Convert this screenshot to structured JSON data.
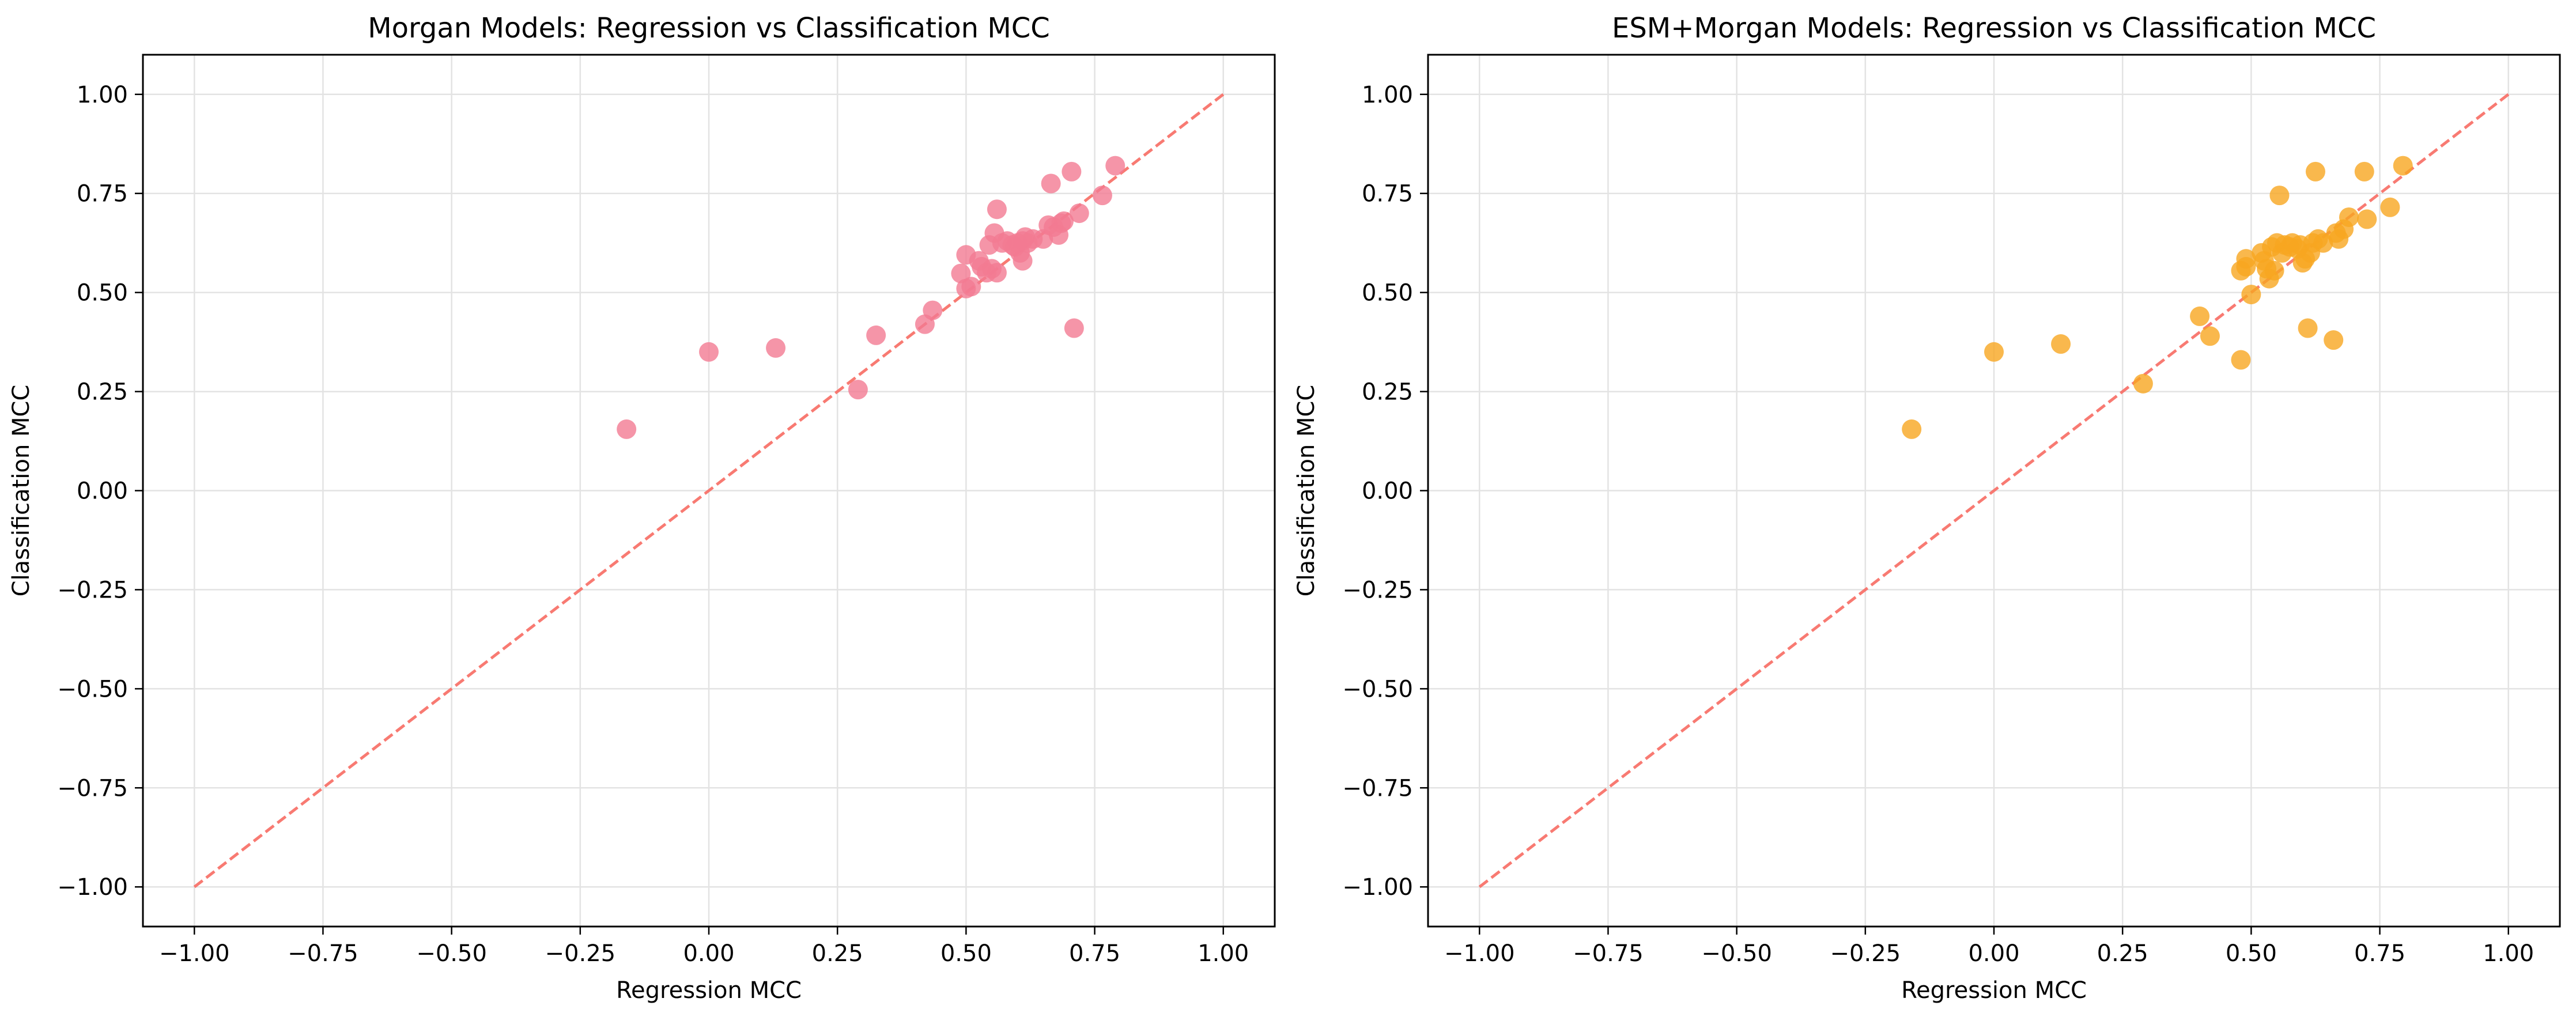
{
  "chart_data": [
    {
      "type": "scatter",
      "title": "Morgan Models: Regression vs Classification MCC",
      "xlabel": "Regression MCC",
      "ylabel": "Classification MCC",
      "xlim": [
        -1.1,
        1.1
      ],
      "ylim": [
        -1.1,
        1.1
      ],
      "xticks": [
        "−1.00",
        "−0.75",
        "−0.50",
        "−0.25",
        "0.00",
        "0.25",
        "0.50",
        "0.75",
        "1.00"
      ],
      "yticks": [
        "−1.00",
        "−0.75",
        "−0.50",
        "−0.25",
        "0.00",
        "0.25",
        "0.50",
        "0.75",
        "1.00"
      ],
      "grid": true,
      "color": "#f27a92",
      "reference_line": {
        "from": [
          -1,
          -1
        ],
        "to": [
          1,
          1
        ],
        "style": "dashed",
        "color": "#f8736b"
      },
      "points": [
        [
          -0.16,
          0.155
        ],
        [
          0.0,
          0.35
        ],
        [
          0.13,
          0.36
        ],
        [
          0.29,
          0.255
        ],
        [
          0.325,
          0.392
        ],
        [
          0.42,
          0.42
        ],
        [
          0.435,
          0.455
        ],
        [
          0.49,
          0.548
        ],
        [
          0.5,
          0.595
        ],
        [
          0.5,
          0.51
        ],
        [
          0.51,
          0.515
        ],
        [
          0.525,
          0.58
        ],
        [
          0.53,
          0.565
        ],
        [
          0.54,
          0.55
        ],
        [
          0.545,
          0.62
        ],
        [
          0.55,
          0.56
        ],
        [
          0.555,
          0.65
        ],
        [
          0.56,
          0.55
        ],
        [
          0.56,
          0.71
        ],
        [
          0.57,
          0.625
        ],
        [
          0.58,
          0.63
        ],
        [
          0.59,
          0.62
        ],
        [
          0.595,
          0.615
        ],
        [
          0.6,
          0.625
        ],
        [
          0.605,
          0.6
        ],
        [
          0.61,
          0.58
        ],
        [
          0.61,
          0.63
        ],
        [
          0.615,
          0.64
        ],
        [
          0.62,
          0.625
        ],
        [
          0.63,
          0.635
        ],
        [
          0.65,
          0.635
        ],
        [
          0.66,
          0.67
        ],
        [
          0.665,
          0.775
        ],
        [
          0.67,
          0.665
        ],
        [
          0.68,
          0.645
        ],
        [
          0.685,
          0.675
        ],
        [
          0.69,
          0.68
        ],
        [
          0.705,
          0.805
        ],
        [
          0.71,
          0.41
        ],
        [
          0.72,
          0.7
        ],
        [
          0.765,
          0.745
        ],
        [
          0.79,
          0.82
        ]
      ]
    },
    {
      "type": "scatter",
      "title": "ESM+Morgan Models: Regression vs Classification MCC",
      "xlabel": "Regression MCC",
      "ylabel": "Classification MCC",
      "xlim": [
        -1.1,
        1.1
      ],
      "ylim": [
        -1.1,
        1.1
      ],
      "xticks": [
        "−1.00",
        "−0.75",
        "−0.50",
        "−0.25",
        "0.00",
        "0.25",
        "0.50",
        "0.75",
        "1.00"
      ],
      "yticks": [
        "−1.00",
        "−0.75",
        "−0.50",
        "−0.25",
        "0.00",
        "0.25",
        "0.50",
        "0.75",
        "1.00"
      ],
      "grid": true,
      "color": "#f7a621",
      "reference_line": {
        "from": [
          -1,
          -1
        ],
        "to": [
          1,
          1
        ],
        "style": "dashed",
        "color": "#f8736b"
      },
      "points": [
        [
          -0.16,
          0.155
        ],
        [
          0.0,
          0.35
        ],
        [
          0.13,
          0.37
        ],
        [
          0.29,
          0.27
        ],
        [
          0.4,
          0.44
        ],
        [
          0.42,
          0.39
        ],
        [
          0.48,
          0.33
        ],
        [
          0.48,
          0.555
        ],
        [
          0.49,
          0.565
        ],
        [
          0.49,
          0.585
        ],
        [
          0.5,
          0.495
        ],
        [
          0.52,
          0.6
        ],
        [
          0.525,
          0.58
        ],
        [
          0.53,
          0.56
        ],
        [
          0.535,
          0.535
        ],
        [
          0.54,
          0.615
        ],
        [
          0.545,
          0.555
        ],
        [
          0.55,
          0.625
        ],
        [
          0.555,
          0.745
        ],
        [
          0.56,
          0.6
        ],
        [
          0.565,
          0.62
        ],
        [
          0.575,
          0.615
        ],
        [
          0.58,
          0.625
        ],
        [
          0.59,
          0.61
        ],
        [
          0.595,
          0.62
        ],
        [
          0.6,
          0.575
        ],
        [
          0.605,
          0.585
        ],
        [
          0.61,
          0.41
        ],
        [
          0.615,
          0.6
        ],
        [
          0.62,
          0.625
        ],
        [
          0.625,
          0.805
        ],
        [
          0.63,
          0.635
        ],
        [
          0.64,
          0.625
        ],
        [
          0.66,
          0.38
        ],
        [
          0.665,
          0.65
        ],
        [
          0.67,
          0.635
        ],
        [
          0.68,
          0.66
        ],
        [
          0.69,
          0.69
        ],
        [
          0.72,
          0.805
        ],
        [
          0.725,
          0.685
        ],
        [
          0.77,
          0.715
        ],
        [
          0.795,
          0.82
        ]
      ]
    }
  ]
}
